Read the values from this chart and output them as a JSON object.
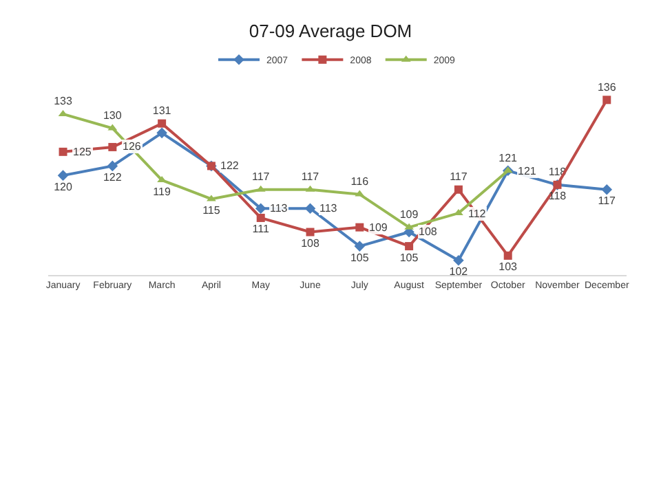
{
  "chart_data": {
    "type": "line",
    "title": "07-09 Average DOM",
    "categories": [
      "January",
      "February",
      "March",
      "April",
      "May",
      "June",
      "July",
      "August",
      "September",
      "October",
      "November",
      "December"
    ],
    "series": [
      {
        "name": "2007",
        "color": "#4a7ebb",
        "marker": "diamond",
        "values": [
          120,
          122,
          129,
          122,
          113,
          113,
          105,
          108,
          102,
          121,
          118,
          117
        ],
        "value_labels": [
          "120",
          "122",
          null,
          null,
          "113",
          "113",
          "105",
          "108",
          "102",
          "121",
          "118",
          "117"
        ]
      },
      {
        "name": "2008",
        "color": "#be4b48",
        "marker": "square",
        "values": [
          125,
          126,
          131,
          122,
          111,
          108,
          109,
          105,
          117,
          103,
          118,
          136
        ],
        "value_labels": [
          "125",
          "126",
          "131",
          "122",
          "111",
          "108",
          "109",
          "105",
          "117",
          "103",
          "118",
          "136"
        ]
      },
      {
        "name": "2009",
        "color": "#98b954",
        "marker": "triangle",
        "values": [
          133,
          130,
          119,
          115,
          117,
          117,
          116,
          109,
          112,
          121,
          null,
          null
        ],
        "value_labels": [
          "133",
          "130",
          "119",
          "115",
          "117",
          "117",
          "116",
          "109",
          "112",
          "121",
          null,
          null
        ]
      }
    ],
    "legend": "top"
  }
}
